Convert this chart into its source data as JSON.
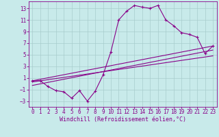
{
  "xlabel": "Windchill (Refroidissement éolien,°C)",
  "bg_color": "#c8eaea",
  "grid_color": "#a8cccc",
  "line_color": "#880088",
  "xlim": [
    -0.5,
    23.5
  ],
  "ylim": [
    -4.0,
    14.2
  ],
  "xticks": [
    0,
    1,
    2,
    3,
    4,
    5,
    6,
    7,
    8,
    9,
    10,
    11,
    12,
    13,
    14,
    15,
    16,
    17,
    18,
    19,
    20,
    21,
    22,
    23
  ],
  "yticks": [
    -3,
    -1,
    1,
    3,
    5,
    7,
    9,
    11,
    13
  ],
  "main_x": [
    0,
    1,
    2,
    3,
    4,
    5,
    6,
    7,
    8,
    9,
    10,
    11,
    12,
    13,
    14,
    15,
    16,
    17,
    18,
    19,
    20,
    21,
    22,
    23
  ],
  "main_y": [
    0.5,
    0.5,
    -0.5,
    -1.2,
    -1.4,
    -2.5,
    -1.2,
    -3.0,
    -1.3,
    1.5,
    5.5,
    11.0,
    12.5,
    13.5,
    13.2,
    13.0,
    13.5,
    11.0,
    10.0,
    8.8,
    8.5,
    8.0,
    5.2,
    6.5
  ],
  "line1_x": [
    0,
    23
  ],
  "line1_y": [
    0.5,
    6.5
  ],
  "line2_x": [
    0,
    23
  ],
  "line2_y": [
    -0.3,
    5.8
  ],
  "line3_x": [
    0,
    23
  ],
  "line3_y": [
    0.3,
    4.8
  ],
  "tick_fontsize": 5.5,
  "xlabel_fontsize": 6.0,
  "marker_size": 3.5,
  "line_width": 0.8
}
